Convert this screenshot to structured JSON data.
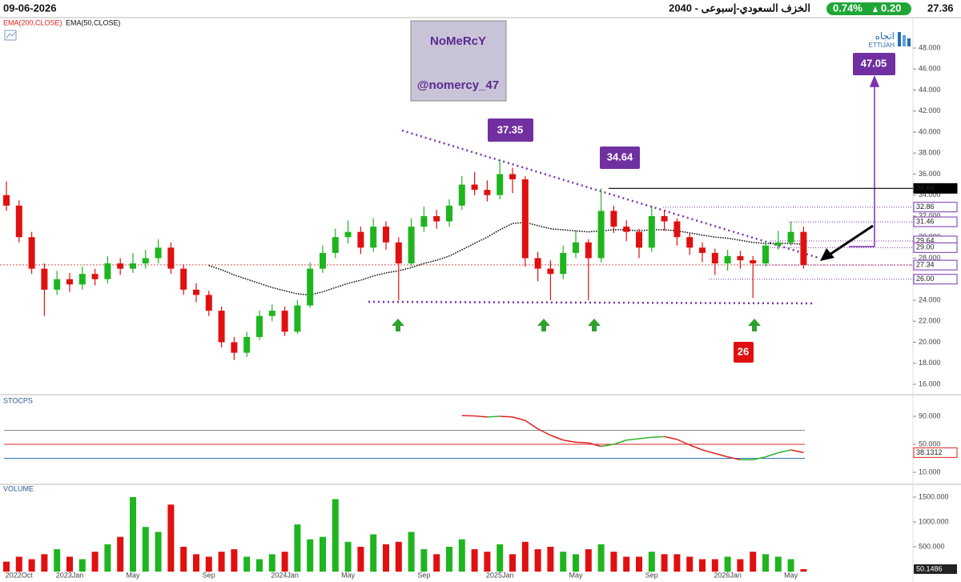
{
  "header": {
    "date": "09-06-2026",
    "title": "2040 - الخزف السعودي-إسبوعى",
    "change_pct": "0.74%",
    "change": "0.20",
    "last": "27.36"
  },
  "watermark": {
    "name": "NoMeRcY",
    "handle": "@nomercy_47"
  },
  "logo": {
    "arabic": "اتجاه",
    "latin": "ETTIJAH"
  },
  "chart_data": [
    {
      "type": "candlestick",
      "categories": [
        null,
        "2022Oct",
        null,
        null,
        null,
        "2023Jan",
        null,
        null,
        null,
        null,
        "May",
        null,
        null,
        null,
        null,
        null,
        "Sep",
        null,
        null,
        null,
        null,
        null,
        "2024Jan",
        null,
        null,
        null,
        null,
        "May",
        null,
        null,
        null,
        null,
        null,
        "Sep",
        null,
        null,
        null,
        null,
        null,
        "2025Jan",
        null,
        null,
        null,
        null,
        null,
        "May",
        null,
        null,
        null,
        null,
        null,
        "Sep",
        null,
        null,
        null,
        null,
        null,
        "2026Jan",
        null,
        null,
        null,
        null,
        "May",
        null
      ],
      "open": [
        34,
        33,
        30,
        27,
        25,
        26,
        25.5,
        26.5,
        26,
        27.5,
        27,
        27.5,
        28,
        29,
        27,
        25,
        24.5,
        23,
        20,
        19,
        20.5,
        22.5,
        23,
        21,
        23.5,
        27,
        28.5,
        30,
        30.5,
        29,
        31,
        29.5,
        27.5,
        31,
        32,
        31.5,
        33,
        35,
        34.5,
        34,
        36,
        35.5,
        28,
        27,
        26.5,
        28.5,
        29.5,
        28,
        32.5,
        31,
        30.5,
        29,
        32,
        31.5,
        30,
        29,
        28.5,
        27.5,
        28.2,
        27.8,
        27.5,
        29.2,
        29.5,
        30.5
      ],
      "high": [
        35.3,
        33.5,
        30.5,
        27.5,
        26.8,
        26.6,
        27.2,
        27,
        28.2,
        28,
        28.5,
        28.8,
        29.8,
        29.5,
        27.4,
        25.6,
        24.9,
        23.4,
        20.5,
        21,
        23,
        23.6,
        23.4,
        24,
        27.6,
        29.2,
        30.8,
        31.6,
        31,
        31.8,
        31.5,
        30,
        31.8,
        32.9,
        32.6,
        33.6,
        35.8,
        36.2,
        35.4,
        37.35,
        36.6,
        35.8,
        28.6,
        27.8,
        29.2,
        30.6,
        29.8,
        34.64,
        33,
        31.6,
        30.8,
        33,
        32.6,
        31.8,
        30.4,
        29.5,
        28.9,
        28.8,
        28.7,
        28.2,
        29.6,
        30.6,
        31.46,
        31
      ],
      "low": [
        32.5,
        29.5,
        26.5,
        22.5,
        24.5,
        24.8,
        25,
        25.4,
        25.6,
        26.4,
        26.6,
        27,
        27.5,
        26.5,
        24.5,
        23.8,
        22.5,
        19.5,
        18.3,
        18.6,
        20.2,
        22,
        20.6,
        20.8,
        23.3,
        26.6,
        28,
        29.4,
        28.4,
        28.6,
        28.8,
        24,
        27.2,
        30.5,
        30.8,
        31,
        32.6,
        34,
        33.4,
        33.6,
        34.2,
        27.2,
        25.8,
        24,
        26,
        28,
        24,
        27.6,
        30.4,
        29.6,
        28,
        28.6,
        30.6,
        29.2,
        28.3,
        27.6,
        26.4,
        26.8,
        27,
        24.2,
        27.2,
        28.8,
        29.2,
        27
      ],
      "close": [
        33,
        30,
        27,
        25,
        26,
        25.5,
        26.5,
        26,
        27.5,
        27,
        27.5,
        28,
        29,
        27,
        25,
        24.5,
        23,
        20,
        19,
        20.5,
        22.5,
        23,
        21,
        23.5,
        27,
        28.5,
        30,
        30.5,
        29,
        31,
        29.5,
        27.5,
        31,
        32,
        31.5,
        33,
        35,
        34.5,
        34,
        36,
        35.5,
        28,
        27,
        26.5,
        28.5,
        29.5,
        28,
        32.5,
        31,
        30.5,
        29,
        32,
        31.5,
        30,
        29,
        28.5,
        27.5,
        28.2,
        27.8,
        27.5,
        29.2,
        29.5,
        30.5,
        27.36
      ],
      "up_color": "#1fb51f",
      "down_color": "#e01010",
      "last_price_color": "#e05050",
      "overlays": [
        {
          "name": "EMA(200,CLOSE)",
          "color": "#e02020"
        },
        {
          "name": "EMA(50,CLOSE)",
          "color": "#000000",
          "values": [
            null,
            null,
            null,
            null,
            null,
            null,
            null,
            null,
            null,
            null,
            null,
            null,
            null,
            null,
            null,
            null,
            27.3,
            26.9,
            26.4,
            26,
            25.6,
            25.2,
            24.9,
            24.6,
            24.5,
            24.8,
            25.2,
            25.6,
            25.9,
            26.3,
            26.6,
            26.8,
            27.1,
            27.5,
            27.8,
            28.2,
            28.8,
            29.4,
            30,
            30.7,
            31.3,
            31.4,
            31.1,
            30.8,
            30.7,
            30.6,
            30.5,
            30.6,
            30.7,
            30.7,
            30.6,
            30.7,
            30.7,
            30.6,
            30.4,
            30.2,
            30,
            29.9,
            29.7,
            29.5,
            29.4,
            29.4,
            29.4,
            29.3
          ]
        }
      ],
      "levels": [
        {
          "value": 34.64,
          "color": "#000000",
          "filled": true
        },
        {
          "value": 32.86,
          "color": "#7a30b0"
        },
        {
          "value": 31.46,
          "color": "#7a30b0"
        },
        {
          "value": 29.64,
          "color": "#7a30b0"
        },
        {
          "value": 29,
          "label": "29.00",
          "color": "#7a30b0"
        },
        {
          "value": 27.34,
          "color": "#7a30b0"
        },
        {
          "value": 26,
          "label": "26.00",
          "color": "#7a30b0"
        }
      ],
      "annotations": [
        37.35,
        34.64,
        47.05,
        26
      ],
      "ylim": [
        15,
        51
      ],
      "yticks": [
        {
          "value": 16,
          "label": "16.000"
        },
        {
          "value": 18,
          "label": "18.000"
        },
        {
          "value": 20,
          "label": "20.000"
        },
        {
          "value": 22,
          "label": "22.000"
        },
        {
          "value": 24,
          "label": "24.000"
        },
        {
          "value": 26,
          "label": "26.000"
        },
        {
          "value": 28,
          "label": "28.000"
        },
        {
          "value": 30,
          "label": "30.000"
        },
        {
          "value": 32,
          "label": "32.000"
        },
        {
          "value": 34,
          "label": "34.000"
        },
        {
          "value": 36,
          "label": "36.000"
        },
        {
          "value": 38,
          "label": "38.000"
        },
        {
          "value": 40,
          "label": "40.000"
        },
        {
          "value": 42,
          "label": "42.000"
        },
        {
          "value": 44,
          "label": "44.000"
        },
        {
          "value": 46,
          "label": "46.000"
        },
        {
          "value": 48,
          "label": "48.000"
        }
      ]
    },
    {
      "type": "line",
      "title": "STOCPS",
      "values": [
        null,
        null,
        null,
        null,
        null,
        null,
        null,
        null,
        null,
        null,
        null,
        null,
        null,
        null,
        null,
        null,
        null,
        null,
        null,
        null,
        null,
        null,
        null,
        null,
        null,
        null,
        null,
        null,
        null,
        null,
        null,
        null,
        null,
        null,
        null,
        null,
        91,
        90.5,
        89,
        90,
        89,
        84,
        72,
        63,
        56,
        53,
        52,
        47,
        50,
        56,
        58,
        60,
        61,
        57,
        49,
        42,
        37,
        32,
        28,
        28,
        32,
        38,
        42,
        38.1312
      ],
      "rise_color": "#2db52d",
      "fall_color": "#e02020",
      "reference_lines": [
        {
          "value": 70,
          "color": "#8a8a8a"
        },
        {
          "value": 50,
          "color": "#e02020"
        },
        {
          "value": 30,
          "color": "#2a7ab8"
        }
      ],
      "ylim": [
        0,
        110
      ],
      "yticks": [
        {
          "value": 90,
          "label": "90.000"
        },
        {
          "value": 50,
          "label": "50.000"
        },
        {
          "value": 10,
          "label": "10.000"
        }
      ]
    },
    {
      "type": "bar",
      "title": "VOLUME",
      "values": [
        200,
        300,
        250,
        350,
        450,
        300,
        250,
        400,
        550,
        700,
        1500,
        900,
        800,
        1350,
        500,
        350,
        300,
        400,
        450,
        300,
        250,
        350,
        400,
        950,
        650,
        700,
        1460,
        600,
        500,
        750,
        550,
        600,
        800,
        450,
        350,
        500,
        650,
        450,
        400,
        550,
        350,
        600,
        450,
        500,
        400,
        350,
        450,
        550,
        400,
        300,
        300,
        400,
        350,
        350,
        300,
        250,
        250,
        300,
        250,
        400,
        350,
        300,
        250,
        50.1486
      ],
      "ylim": [
        0,
        1700
      ],
      "yticks": [
        {
          "value": 500,
          "label": "500.000"
        },
        {
          "value": 1000,
          "label": "1000.000"
        },
        {
          "value": 1500,
          "label": "1500.000"
        }
      ]
    }
  ]
}
